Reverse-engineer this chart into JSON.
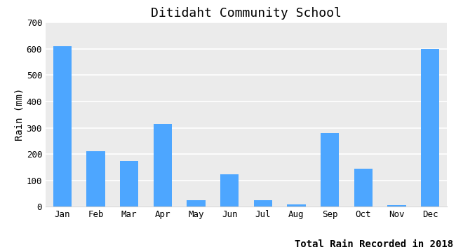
{
  "title": "Ditidaht Community School",
  "xlabel": "Total Rain Recorded in 2018",
  "ylabel": "Rain (mm)",
  "months": [
    "Jan",
    "Feb",
    "Mar",
    "Apr",
    "May",
    "Jun",
    "Jul",
    "Aug",
    "Sep",
    "Oct",
    "Nov",
    "Dec"
  ],
  "values": [
    610,
    210,
    175,
    315,
    25,
    122,
    25,
    8,
    280,
    145,
    7,
    600
  ],
  "bar_color": "#4da6ff",
  "ylim": [
    0,
    700
  ],
  "yticks": [
    0,
    100,
    200,
    300,
    400,
    500,
    600,
    700
  ],
  "background_color": "#ebebeb",
  "title_fontsize": 13,
  "label_fontsize": 10,
  "tick_fontsize": 9
}
